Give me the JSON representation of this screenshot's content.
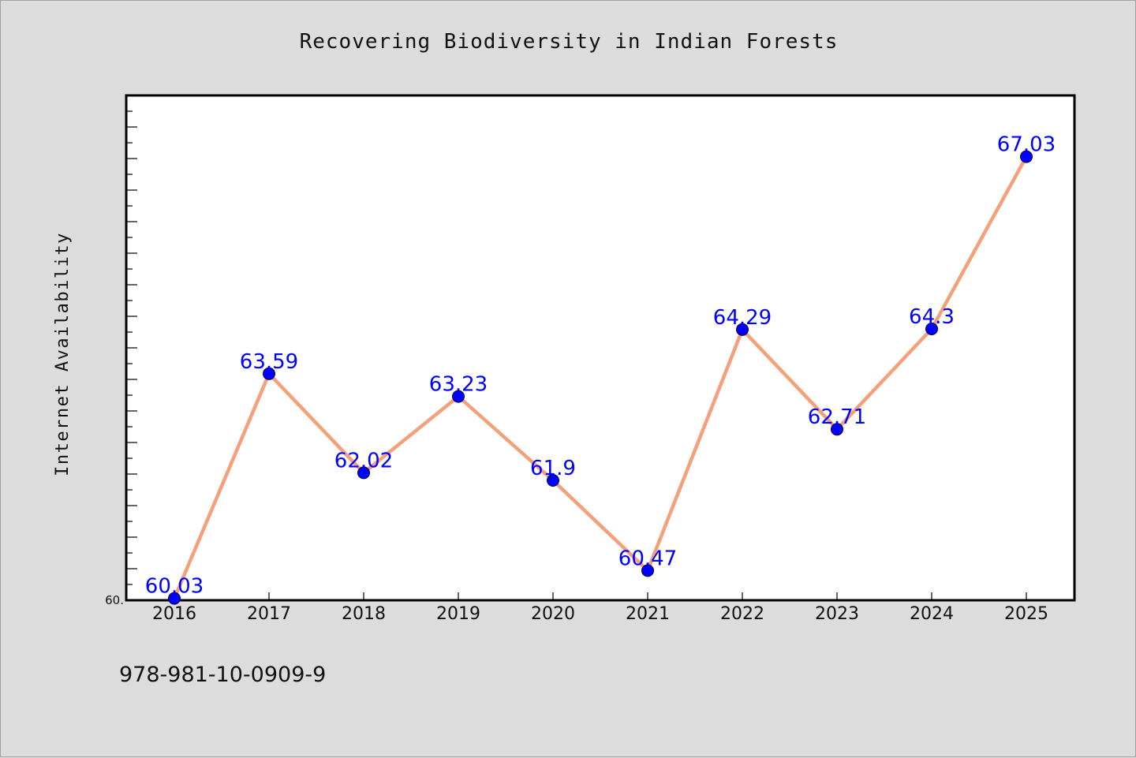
{
  "chart_data": {
    "type": "line",
    "title": "Recovering Biodiversity in Indian Forests",
    "xlabel": "",
    "ylabel": "Internet Availability",
    "categories": [
      "2016",
      "2017",
      "2018",
      "2019",
      "2020",
      "2021",
      "2022",
      "2023",
      "2024",
      "2025"
    ],
    "values": [
      60.03,
      63.59,
      62.02,
      63.23,
      61.9,
      60.47,
      64.29,
      62.71,
      64.3,
      67.03
    ],
    "data_labels": [
      "60.03",
      "63.59",
      "62.02",
      "63.23",
      "61.9",
      "60.47",
      "64.29",
      "62.71",
      "64.3",
      "67.03"
    ],
    "ylim": [
      60.0,
      68.0
    ],
    "ytick_labels": [
      {
        "value": 60.0,
        "label": "60."
      }
    ],
    "grid": false,
    "line_color": "#f4a07a",
    "marker_color": "#0000ff"
  },
  "footer": {
    "isbn": "978-981-10-0909-9"
  }
}
